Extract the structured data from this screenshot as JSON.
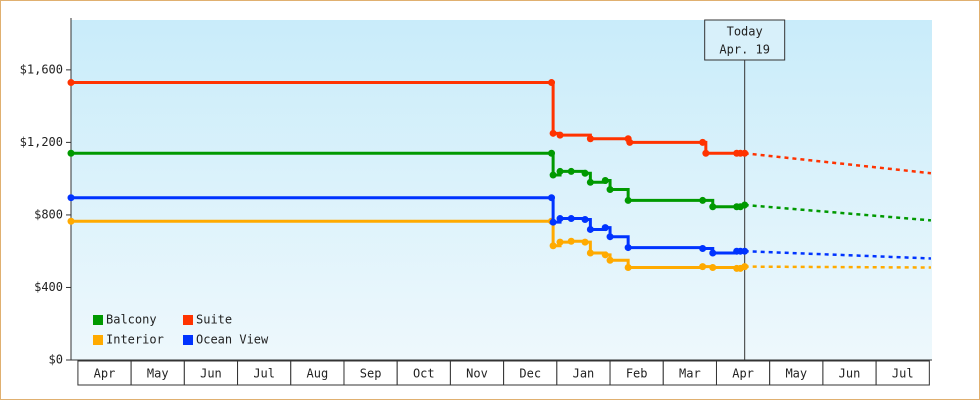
{
  "chart_data": {
    "type": "step-line",
    "xlim": [
      -0.13,
      16.05
    ],
    "ylim": [
      0,
      1875
    ],
    "yticks": [
      {
        "value": 0,
        "label": "$0"
      },
      {
        "value": 400,
        "label": "$400"
      },
      {
        "value": 800,
        "label": "$800"
      },
      {
        "value": 1200,
        "label": "$1,200"
      },
      {
        "value": 1600,
        "label": "$1,600"
      }
    ],
    "xticks": [
      {
        "value": 0.5,
        "label": "Apr"
      },
      {
        "value": 1.5,
        "label": "May"
      },
      {
        "value": 2.5,
        "label": "Jun"
      },
      {
        "value": 3.5,
        "label": "Jul"
      },
      {
        "value": 4.5,
        "label": "Aug"
      },
      {
        "value": 5.5,
        "label": "Sep"
      },
      {
        "value": 6.5,
        "label": "Oct"
      },
      {
        "value": 7.5,
        "label": "Nov"
      },
      {
        "value": 8.5,
        "label": "Dec"
      },
      {
        "value": 9.5,
        "label": "Jan"
      },
      {
        "value": 10.5,
        "label": "Feb"
      },
      {
        "value": 11.5,
        "label": "Mar"
      },
      {
        "value": 12.5,
        "label": "Apr"
      },
      {
        "value": 13.5,
        "label": "May"
      },
      {
        "value": 14.5,
        "label": "Jun"
      },
      {
        "value": 15.5,
        "label": "Jul"
      }
    ],
    "annotation": {
      "text": [
        "Today",
        "Apr. 19"
      ],
      "x": 12.53
    },
    "series": [
      {
        "name": "Balcony",
        "color": "#009900",
        "x": [
          -0.13,
          8.9,
          8.93,
          9.06,
          9.27,
          9.53,
          9.63,
          9.91,
          10.0,
          10.34,
          11.74,
          11.93,
          12.38,
          12.45,
          12.53
        ],
        "values": [
          1140,
          1140,
          1020,
          1040,
          1040,
          1030,
          980,
          990,
          940,
          880,
          880,
          845,
          845,
          845,
          855
        ],
        "forecast_x": [
          12.53,
          16.03
        ],
        "forecast_values": [
          855,
          770
        ]
      },
      {
        "name": "Suite",
        "color": "#ff3300",
        "x": [
          -0.13,
          8.9,
          8.93,
          9.06,
          9.63,
          10.34,
          10.37,
          11.74,
          11.8,
          12.38,
          12.45,
          12.53
        ],
        "values": [
          1530,
          1530,
          1250,
          1240,
          1220,
          1220,
          1200,
          1200,
          1140,
          1140,
          1140,
          1140
        ],
        "forecast_x": [
          12.53,
          16.03
        ],
        "forecast_values": [
          1140,
          1030
        ]
      },
      {
        "name": "Interior",
        "color": "#ffaa00",
        "x": [
          -0.13,
          8.9,
          8.93,
          9.06,
          9.27,
          9.53,
          9.63,
          9.91,
          10.0,
          10.34,
          11.74,
          11.93,
          12.38,
          12.45,
          12.53
        ],
        "values": [
          765,
          765,
          630,
          650,
          655,
          650,
          590,
          580,
          550,
          510,
          515,
          510,
          505,
          505,
          515
        ],
        "forecast_x": [
          12.53,
          16.03
        ],
        "forecast_values": [
          515,
          510
        ]
      },
      {
        "name": "Ocean View",
        "color": "#0033ff",
        "x": [
          -0.13,
          8.9,
          8.93,
          9.06,
          9.27,
          9.53,
          9.63,
          9.91,
          10.0,
          10.34,
          11.74,
          11.93,
          12.38,
          12.45,
          12.53
        ],
        "values": [
          895,
          895,
          760,
          780,
          780,
          775,
          720,
          730,
          680,
          620,
          615,
          590,
          600,
          600,
          600
        ],
        "forecast_x": [
          12.53,
          16.03
        ],
        "forecast_values": [
          600,
          560
        ]
      }
    ]
  }
}
